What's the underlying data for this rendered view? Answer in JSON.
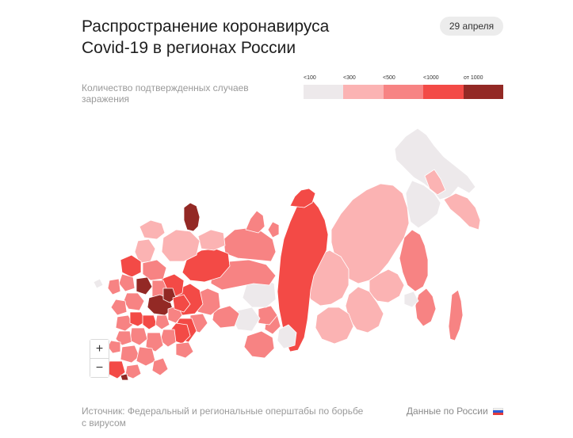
{
  "header": {
    "title_line1": "Распространение коронавируса",
    "title_line2": "Covid-19 в регионах России",
    "date": "29 апреля"
  },
  "legend": {
    "caption": "Количество подтвержденных случаев заражения",
    "items": [
      {
        "label": "<100",
        "color": "#ede9eb"
      },
      {
        "label": "<300",
        "color": "#fbb3b3"
      },
      {
        "label": "<500",
        "color": "#f78383"
      },
      {
        "label": "<1000",
        "color": "#f34a46"
      },
      {
        "label": "от 1000",
        "color": "#932925"
      }
    ]
  },
  "zoom": {
    "in_label": "+",
    "out_label": "−"
  },
  "footer": {
    "source": "Источник: Федеральный и региональные оперштабы по борьбе с вирусом",
    "russia_link": "Данные по России"
  }
}
